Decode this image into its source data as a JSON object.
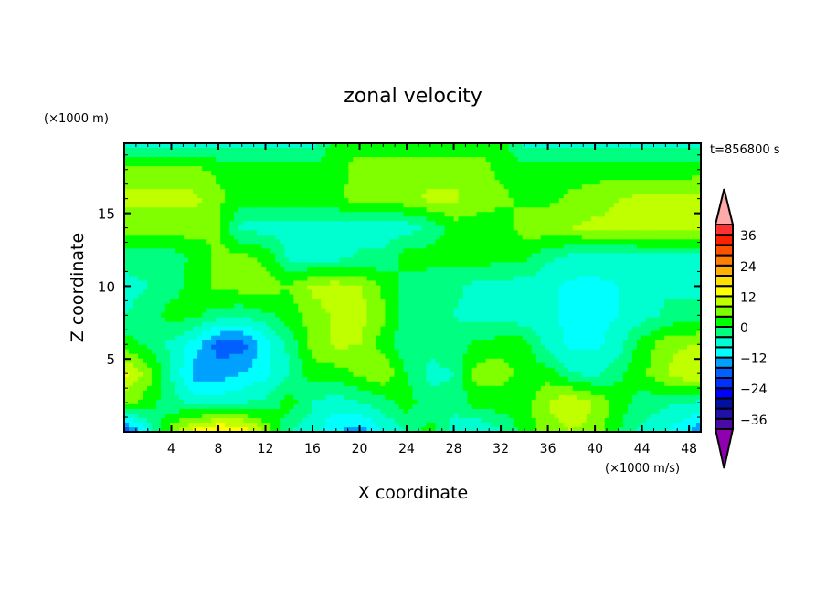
{
  "chart_data": {
    "type": "heatmap",
    "title": "zonal velocity",
    "xlabel": "X coordinate",
    "ylabel": "Z coordinate",
    "x_unit_label": "(×1000 m/s)",
    "y_unit_label": "(×1000 m)",
    "time_label": "t=856800 s",
    "xlim": [
      0,
      49
    ],
    "ylim": [
      0,
      19.8
    ],
    "xticks": [
      4,
      8,
      12,
      16,
      20,
      24,
      28,
      32,
      36,
      40,
      44,
      48
    ],
    "yticks": [
      5,
      10,
      15
    ],
    "grid_x": [
      0,
      2,
      4,
      6,
      8,
      10,
      12,
      14,
      16,
      18,
      20,
      22,
      24,
      26,
      28,
      30,
      32,
      34,
      36,
      38,
      40,
      42,
      44,
      46,
      48,
      50
    ],
    "grid_z": [
      20,
      18,
      16,
      14,
      12,
      10,
      8,
      6,
      4,
      2,
      0
    ],
    "values": [
      [
        -6,
        -6,
        -6,
        -6,
        -6,
        -6,
        -6,
        -6,
        -6,
        2,
        2,
        2,
        2,
        2,
        2,
        2,
        2,
        -6,
        -6,
        -6,
        -6,
        -6,
        -6,
        -6,
        -6,
        -6
      ],
      [
        5,
        5,
        5,
        5,
        3,
        2,
        2,
        2,
        2,
        2,
        6,
        6,
        6,
        6,
        6,
        6,
        3,
        2,
        2,
        2,
        2,
        2,
        2,
        2,
        2,
        2
      ],
      [
        9,
        9,
        9,
        9,
        5,
        2,
        2,
        2,
        2,
        3,
        6,
        6,
        7,
        9,
        9,
        6,
        5,
        3,
        3,
        5,
        6,
        8,
        9,
        9,
        9,
        10
      ],
      [
        6,
        6,
        6,
        6,
        4,
        -5,
        -6,
        -6,
        -6,
        -6,
        -6,
        -6,
        -6,
        -3,
        2,
        2,
        2,
        6,
        7,
        8,
        9,
        9,
        9,
        9,
        9,
        9
      ],
      [
        -3,
        -3,
        -2,
        1,
        5,
        5,
        3,
        -5,
        -6,
        -6,
        -3,
        -3,
        2,
        2,
        2,
        2,
        2,
        1,
        -3,
        -5,
        -6,
        -6,
        -5,
        -5,
        -5,
        -5
      ],
      [
        -5,
        -4,
        -2,
        2,
        5,
        6,
        6,
        4,
        9,
        10,
        8,
        3,
        -2,
        -3,
        -3,
        -5,
        -6,
        -6,
        -7,
        -9,
        -9,
        -8,
        -6,
        -5,
        -5,
        -5
      ],
      [
        -4,
        -3,
        2,
        1,
        -2,
        -3,
        -1,
        2,
        6,
        9,
        10,
        5,
        -2,
        -4,
        -4,
        -6,
        -6,
        -7,
        -7,
        -9,
        -9,
        -8,
        -6,
        -3,
        -3,
        -3
      ],
      [
        2,
        -1,
        -5,
        -10,
        -18,
        -18,
        -10,
        -3,
        6,
        9,
        8,
        2,
        -3,
        -3,
        -2,
        1,
        2,
        2,
        -6,
        -9,
        -9,
        -6,
        2,
        6,
        8,
        9
      ],
      [
        13,
        6,
        -4,
        -14,
        -14,
        -12,
        -9,
        -4,
        2,
        2,
        5,
        8,
        0,
        -5,
        -4,
        6,
        6,
        2,
        2,
        -4,
        -5,
        -1,
        3,
        8,
        12,
        13
      ],
      [
        6,
        2,
        -3,
        -5,
        -6,
        -4,
        -3,
        2,
        -4,
        -6,
        -4,
        -2,
        2,
        -3,
        -3,
        2,
        2,
        2,
        8,
        12,
        8,
        2,
        -2,
        -3,
        -4,
        -5
      ],
      [
        -20,
        -8,
        6,
        14,
        18,
        16,
        8,
        -4,
        -6,
        -12,
        -14,
        -8,
        -4,
        2,
        -6,
        -9,
        -4,
        2,
        6,
        8,
        6,
        0,
        -5,
        -8,
        -12,
        -20
      ]
    ],
    "levels": [
      -40,
      -36,
      -32,
      -28,
      -24,
      -20,
      -16,
      -12,
      -8,
      -4,
      0,
      4,
      8,
      12,
      16,
      20,
      24,
      28,
      32,
      36,
      40
    ],
    "colors": [
      "#4a0aa8",
      "#2010a8",
      "#0010a0",
      "#0000ff",
      "#0030ff",
      "#0060ff",
      "#00a0ff",
      "#00ffff",
      "#00ffd0",
      "#00ff80",
      "#00ff00",
      "#80ff00",
      "#c0ff00",
      "#ffff00",
      "#ffe000",
      "#ffb000",
      "#ff8000",
      "#ff5000",
      "#ff2000",
      "#ff3030"
    ],
    "under_color": "#9000b0",
    "over_color": "#ffaaaa",
    "colorbar_ticks": [
      36,
      24,
      12,
      0,
      -12,
      -24,
      -36
    ]
  }
}
